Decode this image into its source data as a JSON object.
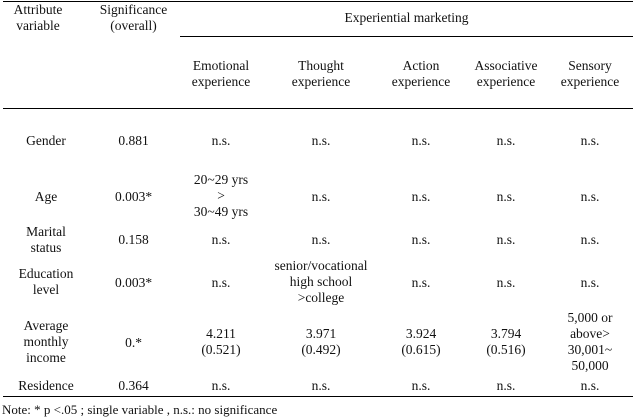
{
  "header": {
    "attribute": "Attribute\nvariable",
    "significance": "Significance\n(overall)",
    "group": "Experiential marketing",
    "columns": [
      "Emotional\nexperience",
      "Thought\nexperience",
      "Action\nexperience",
      "Associative\nexperience",
      "Sensory\nexperience"
    ]
  },
  "rows": [
    {
      "attribute": "Gender",
      "significance": "0.881",
      "cells": [
        "n.s.",
        "n.s.",
        "n.s.",
        "n.s.",
        "n.s."
      ]
    },
    {
      "attribute": "Age",
      "significance": "0.003*",
      "cells": [
        "20~29 yrs\n>\n30~49 yrs",
        "n.s.",
        "n.s.",
        "n.s.",
        "n.s."
      ]
    },
    {
      "attribute": "Marital\nstatus",
      "significance": "0.158",
      "cells": [
        "n.s.",
        "n.s.",
        "n.s.",
        "n.s.",
        "n.s."
      ]
    },
    {
      "attribute": "Education\nlevel",
      "significance": "0.003*",
      "cells": [
        "n.s.",
        "senior/vocational\nhigh school\n>college",
        "n.s.",
        "n.s.",
        "n.s."
      ]
    },
    {
      "attribute": "Average\nmonthly\nincome",
      "significance": "0.*",
      "cells": [
        "4.211\n(0.521)",
        "3.971\n(0.492)",
        "3.924\n(0.615)",
        "3.794\n(0.516)",
        "5,000 or\nabove>\n30,001~\n50,000"
      ]
    },
    {
      "attribute": "Residence",
      "significance": "0.364",
      "cells": [
        "n.s.",
        "n.s.",
        "n.s.",
        "n.s.",
        "n.s."
      ]
    }
  ],
  "note": "Note: * p <.05 ; single variable , n.s.: no significance"
}
